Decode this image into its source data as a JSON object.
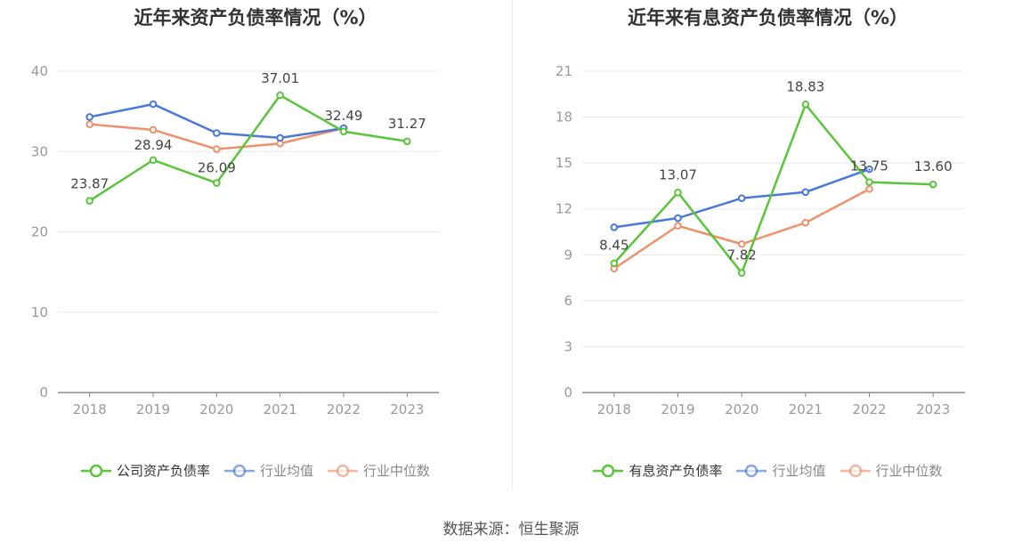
{
  "source_text": "数据来源：恒生聚源",
  "colors": {
    "company": "#5ac53a",
    "industry_avg": "#4a78d8",
    "industry_median": "#f0906a",
    "axis": "#999999",
    "grid": "#e8e8ee"
  },
  "chart_data": [
    {
      "type": "line",
      "title": "近年来资产负债率情况（%）",
      "categories": [
        "2018",
        "2019",
        "2020",
        "2021",
        "2022",
        "2023"
      ],
      "ylim": [
        0,
        40
      ],
      "yticks": [
        0,
        10,
        20,
        30,
        40
      ],
      "series": [
        {
          "name": "公司资产负债率",
          "role": "company",
          "values": [
            23.87,
            28.94,
            26.09,
            37.01,
            32.49,
            31.27
          ],
          "labels": [
            "23.87",
            "28.94",
            "26.09",
            "37.01",
            "32.49",
            "31.27"
          ]
        },
        {
          "name": "行业均值",
          "role": "industry_avg",
          "values": [
            34.3,
            35.9,
            32.3,
            31.7,
            32.9,
            null
          ]
        },
        {
          "name": "行业中位数",
          "role": "industry_median",
          "values": [
            33.4,
            32.7,
            30.3,
            31.0,
            32.9,
            null
          ]
        }
      ]
    },
    {
      "type": "line",
      "title": "近年来有息资产负债率情况（%）",
      "categories": [
        "2018",
        "2019",
        "2020",
        "2021",
        "2022",
        "2023"
      ],
      "ylim": [
        0,
        21
      ],
      "yticks": [
        0,
        3,
        6,
        9,
        12,
        15,
        18,
        21
      ],
      "series": [
        {
          "name": "有息资产负债率",
          "role": "company",
          "values": [
            8.45,
            13.07,
            7.82,
            18.83,
            13.75,
            13.6
          ],
          "labels": [
            "8.45",
            "13.07",
            "7.82",
            "18.83",
            "13.75",
            "13.60"
          ]
        },
        {
          "name": "行业均值",
          "role": "industry_avg",
          "values": [
            10.8,
            11.4,
            12.7,
            13.1,
            14.6,
            null
          ]
        },
        {
          "name": "行业中位数",
          "role": "industry_median",
          "values": [
            8.1,
            10.9,
            9.7,
            11.1,
            13.3,
            null
          ]
        }
      ]
    }
  ]
}
